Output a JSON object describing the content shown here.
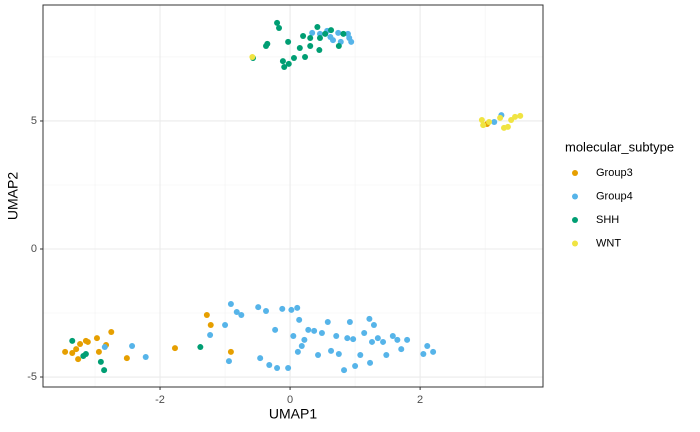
{
  "chart_data": {
    "type": "scatter",
    "x_label": "UMAP1",
    "y_label": "UMAP2",
    "legend_title": "molecular_subtype",
    "xlim": [
      -3.8,
      3.89
    ],
    "ylim": [
      -5.39,
      9.53
    ],
    "xticks": [
      -2,
      0,
      2
    ],
    "yticks": [
      -5,
      0,
      5
    ],
    "grid": true,
    "legend": "right",
    "series": [
      {
        "name": "Group3",
        "color": "#E69F00",
        "x": [
          -3.46,
          -3.35,
          -3.29,
          -3.26,
          -3.23,
          -3.14,
          -3.11,
          -2.97,
          -2.94,
          -2.83,
          -2.75,
          -2.51,
          -1.77,
          -1.28,
          -1.22,
          -0.91,
          3.03
        ],
        "values": [
          -4.02,
          -4.06,
          -3.91,
          -4.3,
          -3.71,
          -3.59,
          -3.63,
          -3.48,
          -4.02,
          -3.75,
          -3.24,
          -4.26,
          -3.87,
          -2.58,
          -2.97,
          -4.02,
          4.88
        ]
      },
      {
        "name": "Group4",
        "color": "#56B4E9",
        "x": [
          -2.85,
          -2.43,
          -2.22,
          -1.23,
          -1.0,
          -0.94,
          -0.91,
          -0.82,
          -0.75,
          -0.49,
          -0.46,
          -0.37,
          -0.32,
          -0.23,
          -0.2,
          -0.12,
          -0.03,
          0.02,
          0.05,
          0.11,
          0.14,
          0.12,
          0.18,
          0.22,
          0.28,
          0.37,
          0.43,
          0.49,
          0.58,
          0.63,
          0.71,
          0.75,
          0.83,
          0.88,
          0.92,
          0.97,
          1.0,
          1.08,
          1.14,
          1.22,
          1.23,
          1.26,
          1.29,
          1.35,
          1.43,
          1.48,
          1.58,
          1.65,
          1.71,
          1.8,
          2.05,
          2.11,
          2.2,
          0.34,
          0.46,
          0.57,
          0.62,
          0.66,
          0.74,
          0.78,
          0.91,
          0.94,
          0.89,
          3.14,
          3.25
        ],
        "values": [
          -3.83,
          -3.79,
          -4.22,
          -3.36,
          -2.97,
          -4.38,
          -2.15,
          -2.46,
          -2.58,
          -2.27,
          -4.26,
          -2.42,
          -4.53,
          -3.16,
          -4.65,
          -2.34,
          -4.65,
          -2.38,
          -3.4,
          -2.3,
          -2.77,
          -4.02,
          -3.79,
          -3.55,
          -3.16,
          -3.2,
          -4.14,
          -3.28,
          -2.85,
          -3.98,
          -3.4,
          -4.1,
          -4.73,
          -3.48,
          -2.85,
          -3.52,
          -4.57,
          -4.14,
          -3.28,
          -2.73,
          -4.45,
          -3.63,
          -2.97,
          -3.48,
          -3.63,
          -4.14,
          -3.4,
          -3.55,
          -3.91,
          -3.55,
          -4.1,
          -3.79,
          -4.02,
          8.44,
          8.4,
          8.52,
          8.28,
          8.16,
          8.44,
          8.09,
          8.24,
          8.09,
          8.4,
          4.96,
          5.23
        ]
      },
      {
        "name": "SHH",
        "color": "#009E73",
        "x": [
          -0.2,
          -0.17,
          -0.35,
          -0.37,
          -0.03,
          0.15,
          0.2,
          0.31,
          0.42,
          0.46,
          0.54,
          0.63,
          0.82,
          0.75,
          -0.11,
          -0.09,
          -0.02,
          0.06,
          0.23,
          0.31,
          0.45,
          -0.57,
          -3.35,
          -3.18,
          -3.14,
          -2.91,
          -2.86,
          -1.38
        ],
        "values": [
          8.83,
          8.63,
          8.01,
          7.93,
          8.09,
          7.85,
          8.32,
          8.24,
          8.67,
          8.24,
          8.4,
          8.55,
          8.4,
          7.93,
          7.34,
          7.11,
          7.23,
          7.46,
          7.5,
          7.93,
          7.77,
          7.46,
          -3.59,
          -4.18,
          -4.1,
          -4.41,
          -4.73,
          -3.83
        ]
      },
      {
        "name": "WNT",
        "color": "#F0E442",
        "x": [
          -0.58,
          2.95,
          2.97,
          3.06,
          3.23,
          3.29,
          3.35,
          3.4,
          3.46,
          3.54
        ],
        "values": [
          7.5,
          5.04,
          4.84,
          4.96,
          5.12,
          4.73,
          4.77,
          5.04,
          5.16,
          5.2
        ]
      }
    ]
  }
}
